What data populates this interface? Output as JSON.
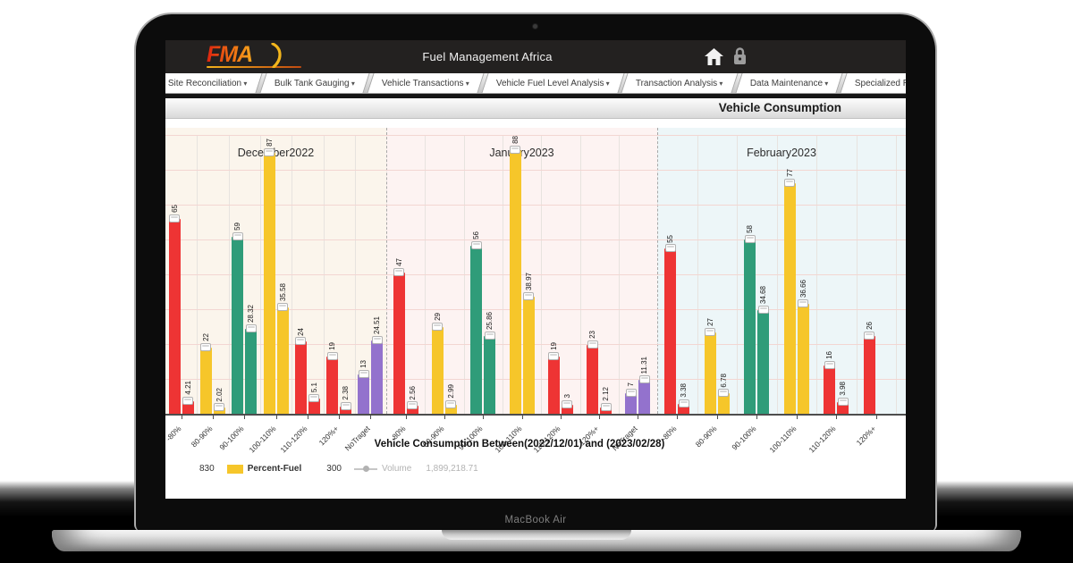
{
  "device": {
    "label": "MacBook Air"
  },
  "header": {
    "logo_text": "FMA",
    "app_title": "Fuel Management Africa",
    "icons": [
      "home-icon",
      "lock-icon"
    ]
  },
  "menu": {
    "items": [
      "Site Reconciliation",
      "Bulk Tank Gauging",
      "Vehicle Transactions",
      "Vehicle Fuel Level Analysis",
      "Transaction Analysis",
      "Data Maintenance",
      "Specialized Reports"
    ]
  },
  "page": {
    "title": "Vehicle Consumption"
  },
  "chart_data": {
    "type": "bar",
    "title": "Vehicle Consumption Between(2022/12/01) and (2023/02/28)",
    "x_axis_categories": [
      "-80%",
      "80-90%",
      "90-100%",
      "100-110%",
      "110-120%",
      "120%+",
      "NoTraget"
    ],
    "ylim": [
      0,
      93
    ],
    "grid": true,
    "bar_pairing": "each category shows vehicle-count bar then percent-fuel bar",
    "panels": [
      {
        "label": "December2022",
        "background": "#fbf5ec",
        "pairs": [
          {
            "category": "-80%",
            "color": "#ee3434",
            "count": 65,
            "value": 4.21
          },
          {
            "category": "80-90%",
            "color": "#f6c62a",
            "count": 22,
            "value": 2.02
          },
          {
            "category": "90-100%",
            "color": "#2f9c79",
            "count": 59,
            "value": 28.32
          },
          {
            "category": "100-110%",
            "color": "#f6c62a",
            "count": 87,
            "value": 35.58
          },
          {
            "category": "110-120%",
            "color": "#ee3434",
            "count": 24,
            "value": 5.1
          },
          {
            "category": "120%+",
            "color": "#ee3434",
            "count": 19,
            "value": 2.38
          },
          {
            "category": "NoTraget",
            "color": "#9372cd",
            "count": 13,
            "value": 24.51
          }
        ]
      },
      {
        "label": "January2023",
        "background": "#fdf3f2",
        "pairs": [
          {
            "category": "-80%",
            "color": "#ee3434",
            "count": 47,
            "value": 2.56
          },
          {
            "category": "80-90%",
            "color": "#f6c62a",
            "count": 29,
            "value": 2.99
          },
          {
            "category": "90-100%",
            "color": "#2f9c79",
            "count": 56,
            "value": 25.86
          },
          {
            "category": "100-110%",
            "color": "#f6c62a",
            "count": 88,
            "value": 38.97
          },
          {
            "category": "110-120%",
            "color": "#ee3434",
            "count": 19,
            "value": 3
          },
          {
            "category": "120%+",
            "color": "#ee3434",
            "count": 23,
            "value": 2.12
          },
          {
            "category": "NoTraget",
            "color": "#9372cd",
            "count": 7,
            "value": 11.31
          }
        ]
      },
      {
        "label": "February2023",
        "background": "#edf6f8",
        "pairs": [
          {
            "category": "-80%",
            "color": "#ee3434",
            "count": 55,
            "value": 3.38
          },
          {
            "category": "80-90%",
            "color": "#f6c62a",
            "count": 27,
            "value": 6.78
          },
          {
            "category": "90-100%",
            "color": "#2f9c79",
            "count": 58,
            "value": 34.68
          },
          {
            "category": "100-110%",
            "color": "#f6c62a",
            "count": 77,
            "value": 36.66
          },
          {
            "category": "110-120%",
            "color": "#ee3434",
            "count": 16,
            "value": 3.98
          },
          {
            "category": "120%+",
            "color": "#ee3434",
            "count": 26,
            "value": null
          }
        ]
      }
    ],
    "legend": [
      {
        "label": "830"
      },
      {
        "label": "Percent-Fuel",
        "color": "#f6c62a",
        "swatch": "square"
      },
      {
        "label": "300"
      },
      {
        "label": "Volume",
        "color": "#b2b2b2",
        "swatch": "line-dot",
        "value": "1,899,218.71",
        "disabled": true
      }
    ]
  }
}
